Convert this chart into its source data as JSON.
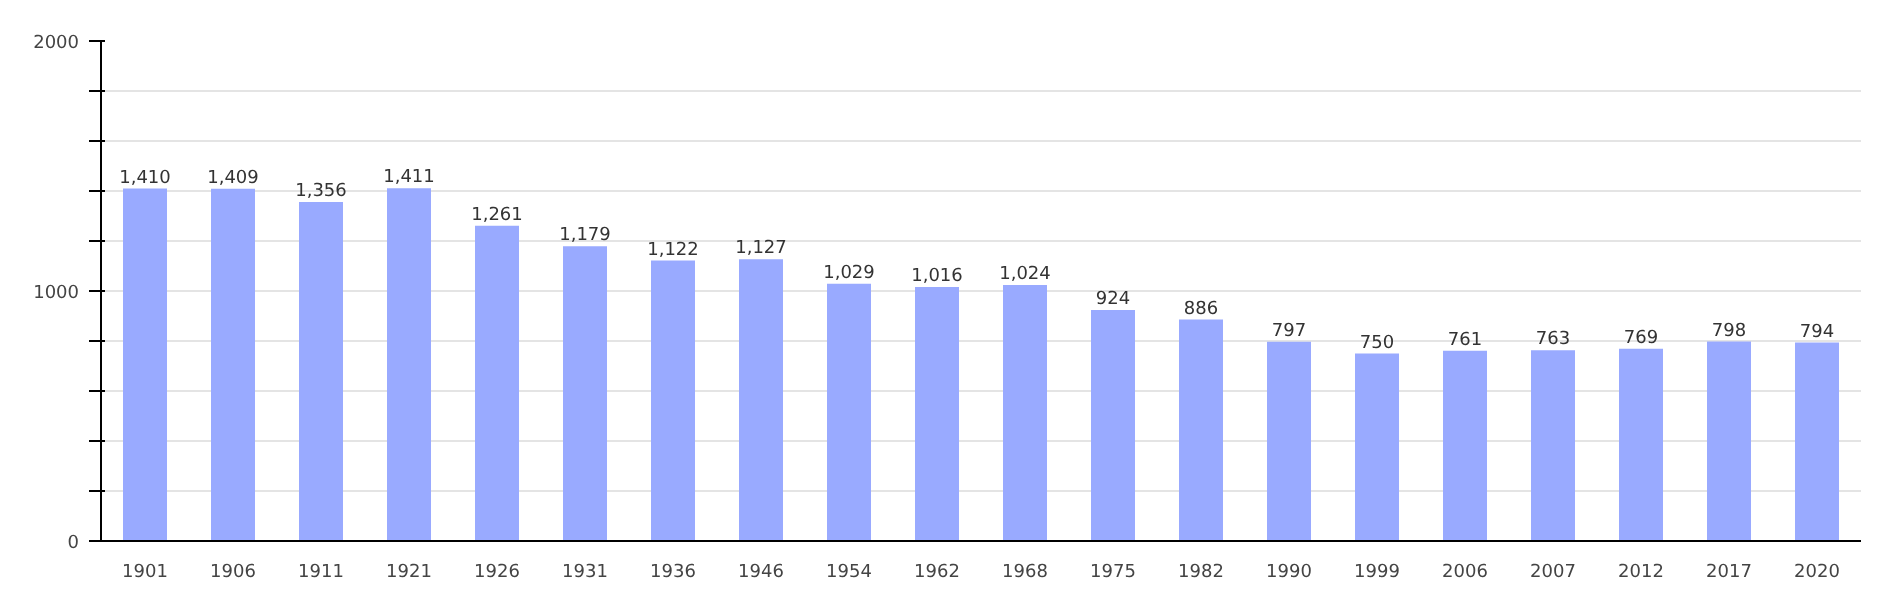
{
  "chart_data": {
    "type": "bar",
    "categories": [
      "1901",
      "1906",
      "1911",
      "1921",
      "1926",
      "1931",
      "1936",
      "1946",
      "1954",
      "1962",
      "1968",
      "1975",
      "1982",
      "1990",
      "1999",
      "2006",
      "2007",
      "2012",
      "2017",
      "2020"
    ],
    "values": [
      1410,
      1409,
      1356,
      1411,
      1261,
      1179,
      1122,
      1127,
      1029,
      1016,
      1024,
      924,
      886,
      797,
      750,
      761,
      763,
      769,
      798,
      794
    ],
    "value_labels": [
      "1,410",
      "1,409",
      "1,356",
      "1,411",
      "1,261",
      "1,179",
      "1,122",
      "1,127",
      "1,029",
      "1,016",
      "1,024",
      "924",
      "886",
      "797",
      "750",
      "761",
      "763",
      "769",
      "798",
      "794"
    ],
    "color": "#99aaff",
    "ylim": [
      0,
      2000
    ],
    "yticks": [
      0,
      {
        "value": 200,
        "label": null
      },
      {
        "value": 400,
        "label": null
      },
      {
        "value": 600,
        "label": null
      },
      {
        "value": 800,
        "label": null
      },
      1000,
      {
        "value": 1200,
        "label": null
      },
      {
        "value": 1400,
        "label": null
      },
      {
        "value": 1600,
        "label": null
      },
      {
        "value": 1800,
        "label": null
      },
      2000
    ],
    "grid": "y"
  }
}
